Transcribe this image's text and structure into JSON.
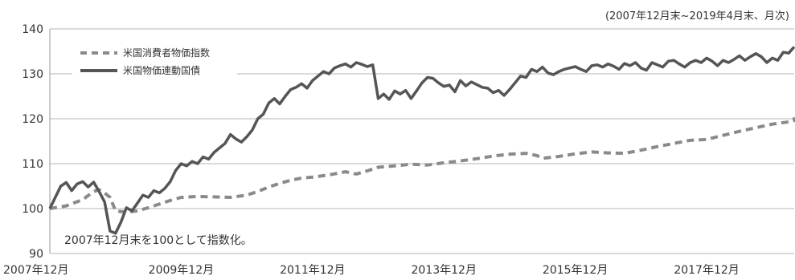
{
  "chart_data": {
    "type": "line",
    "title": "",
    "subtitle": "(2007年12月末~2019年4月末、月次)",
    "note": "2007年12月末を100として指数化。",
    "xlabel": "",
    "ylabel": "",
    "ylim": [
      90,
      140
    ],
    "yticks": [
      90,
      100,
      110,
      120,
      130,
      140
    ],
    "xlim": [
      0,
      136
    ],
    "xticks": [
      {
        "x": 0,
        "label": "2007年12月"
      },
      {
        "x": 24,
        "label": "2009年12月"
      },
      {
        "x": 48,
        "label": "2011年12月"
      },
      {
        "x": 72,
        "label": "2013年12月"
      },
      {
        "x": 96,
        "label": "2015年12月"
      },
      {
        "x": 120,
        "label": "2017年12月"
      }
    ],
    "grid": "horizontal",
    "legend_position": "top-left",
    "series": [
      {
        "name": "米国消費者物価指数",
        "style": "dashed",
        "color": "#8a8a8a",
        "points": [
          [
            0,
            100
          ],
          [
            3,
            100.6
          ],
          [
            6,
            102
          ],
          [
            8,
            103.8
          ],
          [
            9,
            104.2
          ],
          [
            10,
            103.5
          ],
          [
            11,
            102.5
          ],
          [
            12,
            99.5
          ],
          [
            14,
            99.2
          ],
          [
            16,
            99.5
          ],
          [
            18,
            100.2
          ],
          [
            20,
            101
          ],
          [
            22,
            101.8
          ],
          [
            24,
            102.5
          ],
          [
            27,
            102.7
          ],
          [
            30,
            102.6
          ],
          [
            33,
            102.5
          ],
          [
            36,
            103
          ],
          [
            38,
            103.8
          ],
          [
            40,
            104.8
          ],
          [
            42,
            105.6
          ],
          [
            44,
            106.3
          ],
          [
            46,
            106.8
          ],
          [
            48,
            107
          ],
          [
            51,
            107.5
          ],
          [
            54,
            108.2
          ],
          [
            56,
            107.7
          ],
          [
            58,
            108.4
          ],
          [
            60,
            109.2
          ],
          [
            63,
            109.5
          ],
          [
            66,
            109.9
          ],
          [
            69,
            109.7
          ],
          [
            72,
            110.2
          ],
          [
            75,
            110.6
          ],
          [
            78,
            111.1
          ],
          [
            81,
            111.7
          ],
          [
            84,
            112.1
          ],
          [
            87,
            112.3
          ],
          [
            89,
            111.8
          ],
          [
            90,
            111.2
          ],
          [
            93,
            111.6
          ],
          [
            96,
            112.2
          ],
          [
            99,
            112.6
          ],
          [
            102,
            112.4
          ],
          [
            105,
            112.3
          ],
          [
            108,
            113
          ],
          [
            111,
            113.8
          ],
          [
            114,
            114.5
          ],
          [
            117,
            115.2
          ],
          [
            120,
            115.4
          ],
          [
            123,
            116.3
          ],
          [
            126,
            117.2
          ],
          [
            129,
            118
          ],
          [
            132,
            118.8
          ],
          [
            135,
            119.3
          ],
          [
            137,
            119.6
          ],
          [
            139,
            119.8
          ],
          [
            141,
            120.3
          ]
        ]
      },
      {
        "name": "米国物価連動国債",
        "style": "solid",
        "color": "#555555",
        "points": [
          [
            0,
            100
          ],
          [
            1,
            102.5
          ],
          [
            2,
            105
          ],
          [
            3,
            105.8
          ],
          [
            4,
            104
          ],
          [
            5,
            105.5
          ],
          [
            6,
            106
          ],
          [
            7,
            104.8
          ],
          [
            8,
            105.9
          ],
          [
            9,
            103.8
          ],
          [
            10,
            101.5
          ],
          [
            11,
            95
          ],
          [
            12,
            94.5
          ],
          [
            13,
            97
          ],
          [
            14,
            100.2
          ],
          [
            15,
            99.5
          ],
          [
            16,
            101.2
          ],
          [
            17,
            103
          ],
          [
            18,
            102.5
          ],
          [
            19,
            104
          ],
          [
            20,
            103.5
          ],
          [
            21,
            104.5
          ],
          [
            22,
            106
          ],
          [
            23,
            108.5
          ],
          [
            24,
            110
          ],
          [
            25,
            109.5
          ],
          [
            26,
            110.5
          ],
          [
            27,
            110
          ],
          [
            28,
            111.5
          ],
          [
            29,
            111
          ],
          [
            30,
            112.5
          ],
          [
            31,
            113.5
          ],
          [
            32,
            114.5
          ],
          [
            33,
            116.5
          ],
          [
            34,
            115.5
          ],
          [
            35,
            114.8
          ],
          [
            36,
            116
          ],
          [
            37,
            117.5
          ],
          [
            38,
            120
          ],
          [
            39,
            121
          ],
          [
            40,
            123.5
          ],
          [
            41,
            124.5
          ],
          [
            42,
            123.3
          ],
          [
            43,
            125
          ],
          [
            44,
            126.5
          ],
          [
            45,
            127
          ],
          [
            46,
            127.8
          ],
          [
            47,
            126.8
          ],
          [
            48,
            128.5
          ],
          [
            49,
            129.5
          ],
          [
            50,
            130.5
          ],
          [
            51,
            130
          ],
          [
            52,
            131.3
          ],
          [
            53,
            131.8
          ],
          [
            54,
            132.2
          ],
          [
            55,
            131.5
          ],
          [
            56,
            132.5
          ],
          [
            57,
            132.1
          ],
          [
            58,
            131.6
          ],
          [
            59,
            132
          ],
          [
            60,
            124.5
          ],
          [
            61,
            125.5
          ],
          [
            62,
            124.3
          ],
          [
            63,
            126.2
          ],
          [
            64,
            125.5
          ],
          [
            65,
            126.3
          ],
          [
            66,
            124.5
          ],
          [
            67,
            126.2
          ],
          [
            68,
            128
          ],
          [
            69,
            129.2
          ],
          [
            70,
            129
          ],
          [
            71,
            128
          ],
          [
            72,
            127.2
          ],
          [
            73,
            127.5
          ],
          [
            74,
            126
          ],
          [
            75,
            128.5
          ],
          [
            76,
            127.3
          ],
          [
            77,
            128.2
          ],
          [
            78,
            127.6
          ],
          [
            79,
            127
          ],
          [
            80,
            126.8
          ],
          [
            81,
            125.8
          ],
          [
            82,
            126.3
          ],
          [
            83,
            125.2
          ],
          [
            84,
            126.5
          ],
          [
            85,
            128
          ],
          [
            86,
            129.5
          ],
          [
            87,
            129.2
          ],
          [
            88,
            131
          ],
          [
            89,
            130.5
          ],
          [
            90,
            131.5
          ],
          [
            91,
            130.2
          ],
          [
            92,
            129.8
          ],
          [
            93,
            130.5
          ],
          [
            94,
            131
          ],
          [
            95,
            131.3
          ],
          [
            96,
            131.6
          ],
          [
            97,
            131
          ],
          [
            98,
            130.5
          ],
          [
            99,
            131.8
          ],
          [
            100,
            132
          ],
          [
            101,
            131.5
          ],
          [
            102,
            132.2
          ],
          [
            103,
            131.7
          ],
          [
            104,
            131
          ],
          [
            105,
            132.3
          ],
          [
            106,
            131.8
          ],
          [
            107,
            132.5
          ],
          [
            108,
            131.3
          ],
          [
            109,
            130.8
          ],
          [
            110,
            132.5
          ],
          [
            111,
            132
          ],
          [
            112,
            131.5
          ],
          [
            113,
            132.8
          ],
          [
            114,
            133
          ],
          [
            115,
            132.2
          ],
          [
            116,
            131.5
          ],
          [
            117,
            132.5
          ],
          [
            118,
            133
          ],
          [
            119,
            132.5
          ],
          [
            120,
            133.5
          ],
          [
            121,
            132.8
          ],
          [
            122,
            131.8
          ],
          [
            123,
            133
          ],
          [
            124,
            132.5
          ],
          [
            125,
            133.2
          ],
          [
            126,
            134
          ],
          [
            127,
            133
          ],
          [
            128,
            133.8
          ],
          [
            129,
            134.5
          ],
          [
            130,
            133.8
          ],
          [
            131,
            132.5
          ],
          [
            132,
            133.5
          ],
          [
            133,
            133
          ],
          [
            134,
            134.8
          ],
          [
            135,
            134.6
          ],
          [
            136,
            136
          ]
        ]
      }
    ]
  }
}
